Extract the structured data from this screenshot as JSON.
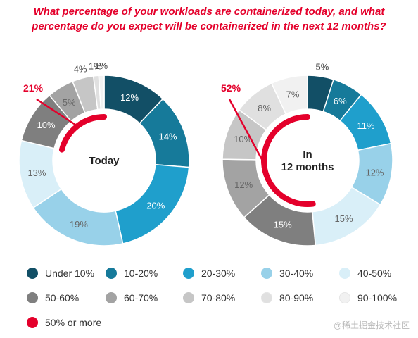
{
  "title": {
    "line1": "What percentage of your workloads are containerized today, and what",
    "line2": "percentage do you expect will be containerized in the next 12 months?"
  },
  "chart_data": [
    {
      "type": "pie",
      "donut": true,
      "center_label": [
        "Today"
      ],
      "categories": [
        "Under 10%",
        "10-20%",
        "20-30%",
        "30-40%",
        "40-50%",
        "50-60%",
        "60-70%",
        "70-80%",
        "80-90%",
        "90-100%"
      ],
      "values": [
        12,
        14,
        20,
        19,
        13,
        10,
        5,
        4,
        1,
        1
      ],
      "value_labels": [
        "12%",
        "14%",
        "20%",
        "19%",
        "13%",
        "10%",
        "5%",
        "4%",
        "1%",
        "1%"
      ],
      "highlight": {
        "label": "21%",
        "value": 21,
        "series": "50% or more"
      }
    },
    {
      "type": "pie",
      "donut": true,
      "center_label": [
        "In",
        "12 months"
      ],
      "categories": [
        "Under 10%",
        "10-20%",
        "20-30%",
        "30-40%",
        "40-50%",
        "50-60%",
        "60-70%",
        "70-80%",
        "80-90%",
        "90-100%"
      ],
      "values": [
        5,
        6,
        11,
        12,
        15,
        15,
        12,
        10,
        8,
        7
      ],
      "value_labels": [
        "5%",
        "6%",
        "11%",
        "12%",
        "15%",
        "15%",
        "12%",
        "10%",
        "8%",
        "7%"
      ],
      "highlight": {
        "label": "52%",
        "value": 52,
        "series": "50% or more"
      }
    }
  ],
  "colors": [
    "#124f66",
    "#167a9a",
    "#1f9fcc",
    "#98d1e9",
    "#d9eff8",
    "#7f7f7f",
    "#a3a3a3",
    "#c6c6c6",
    "#e0e0e0",
    "#f1f1f1"
  ],
  "highlight_color": "#e4002b",
  "legend": [
    {
      "label": "Under 10%",
      "color": "#124f66"
    },
    {
      "label": "10-20%",
      "color": "#167a9a"
    },
    {
      "label": "20-30%",
      "color": "#1f9fcc"
    },
    {
      "label": "30-40%",
      "color": "#98d1e9"
    },
    {
      "label": "40-50%",
      "color": "#d9eff8"
    },
    {
      "label": "50-60%",
      "color": "#7f7f7f"
    },
    {
      "label": "60-70%",
      "color": "#a3a3a3"
    },
    {
      "label": "70-80%",
      "color": "#c6c6c6"
    },
    {
      "label": "80-90%",
      "color": "#e0e0e0"
    },
    {
      "label": "90-100%",
      "color": "#f1f1f1"
    },
    {
      "label": "50% or more",
      "color": "#e4002b"
    }
  ],
  "watermark": "@稀土掘金技术社区"
}
